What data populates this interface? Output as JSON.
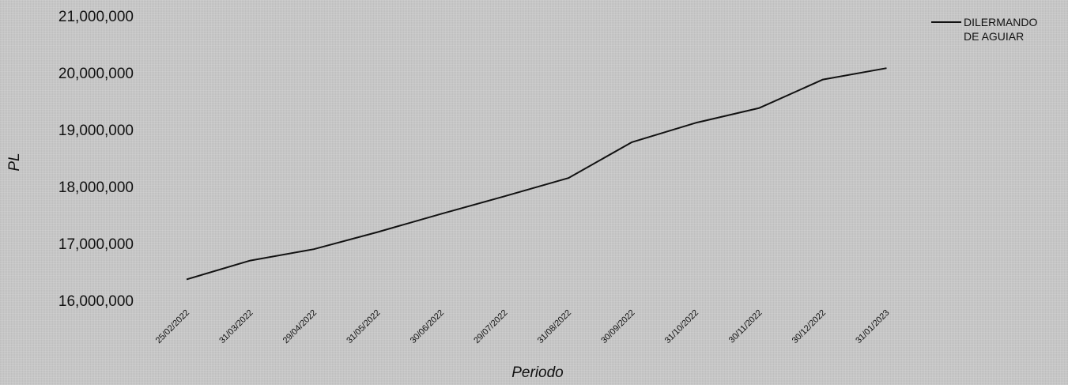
{
  "chart_data": {
    "type": "line",
    "title": "",
    "xlabel": "Periodo",
    "ylabel": "PL",
    "ylim": [
      16000000,
      21000000
    ],
    "yticks": [
      "16,000,000",
      "17,000,000",
      "18,000,000",
      "19,000,000",
      "20,000,000",
      "21,000,000"
    ],
    "ytick_values": [
      16000000,
      17000000,
      18000000,
      19000000,
      20000000,
      21000000
    ],
    "categories": [
      "25/02/2022",
      "31/03/2022",
      "29/04/2022",
      "31/05/2022",
      "30/06/2022",
      "29/07/2022",
      "31/08/2022",
      "30/09/2022",
      "31/10/2022",
      "30/11/2022",
      "30/12/2022",
      "31/01/2023"
    ],
    "series": [
      {
        "name_lines": [
          "DILERMANDO",
          "DE AGUIAR"
        ],
        "color": "#111111",
        "values": [
          16370000,
          16700000,
          16900000,
          17200000,
          17520000,
          17830000,
          18150000,
          18780000,
          19120000,
          19380000,
          19880000,
          20080000
        ]
      }
    ],
    "grid": false,
    "legend_position": "top-right"
  }
}
